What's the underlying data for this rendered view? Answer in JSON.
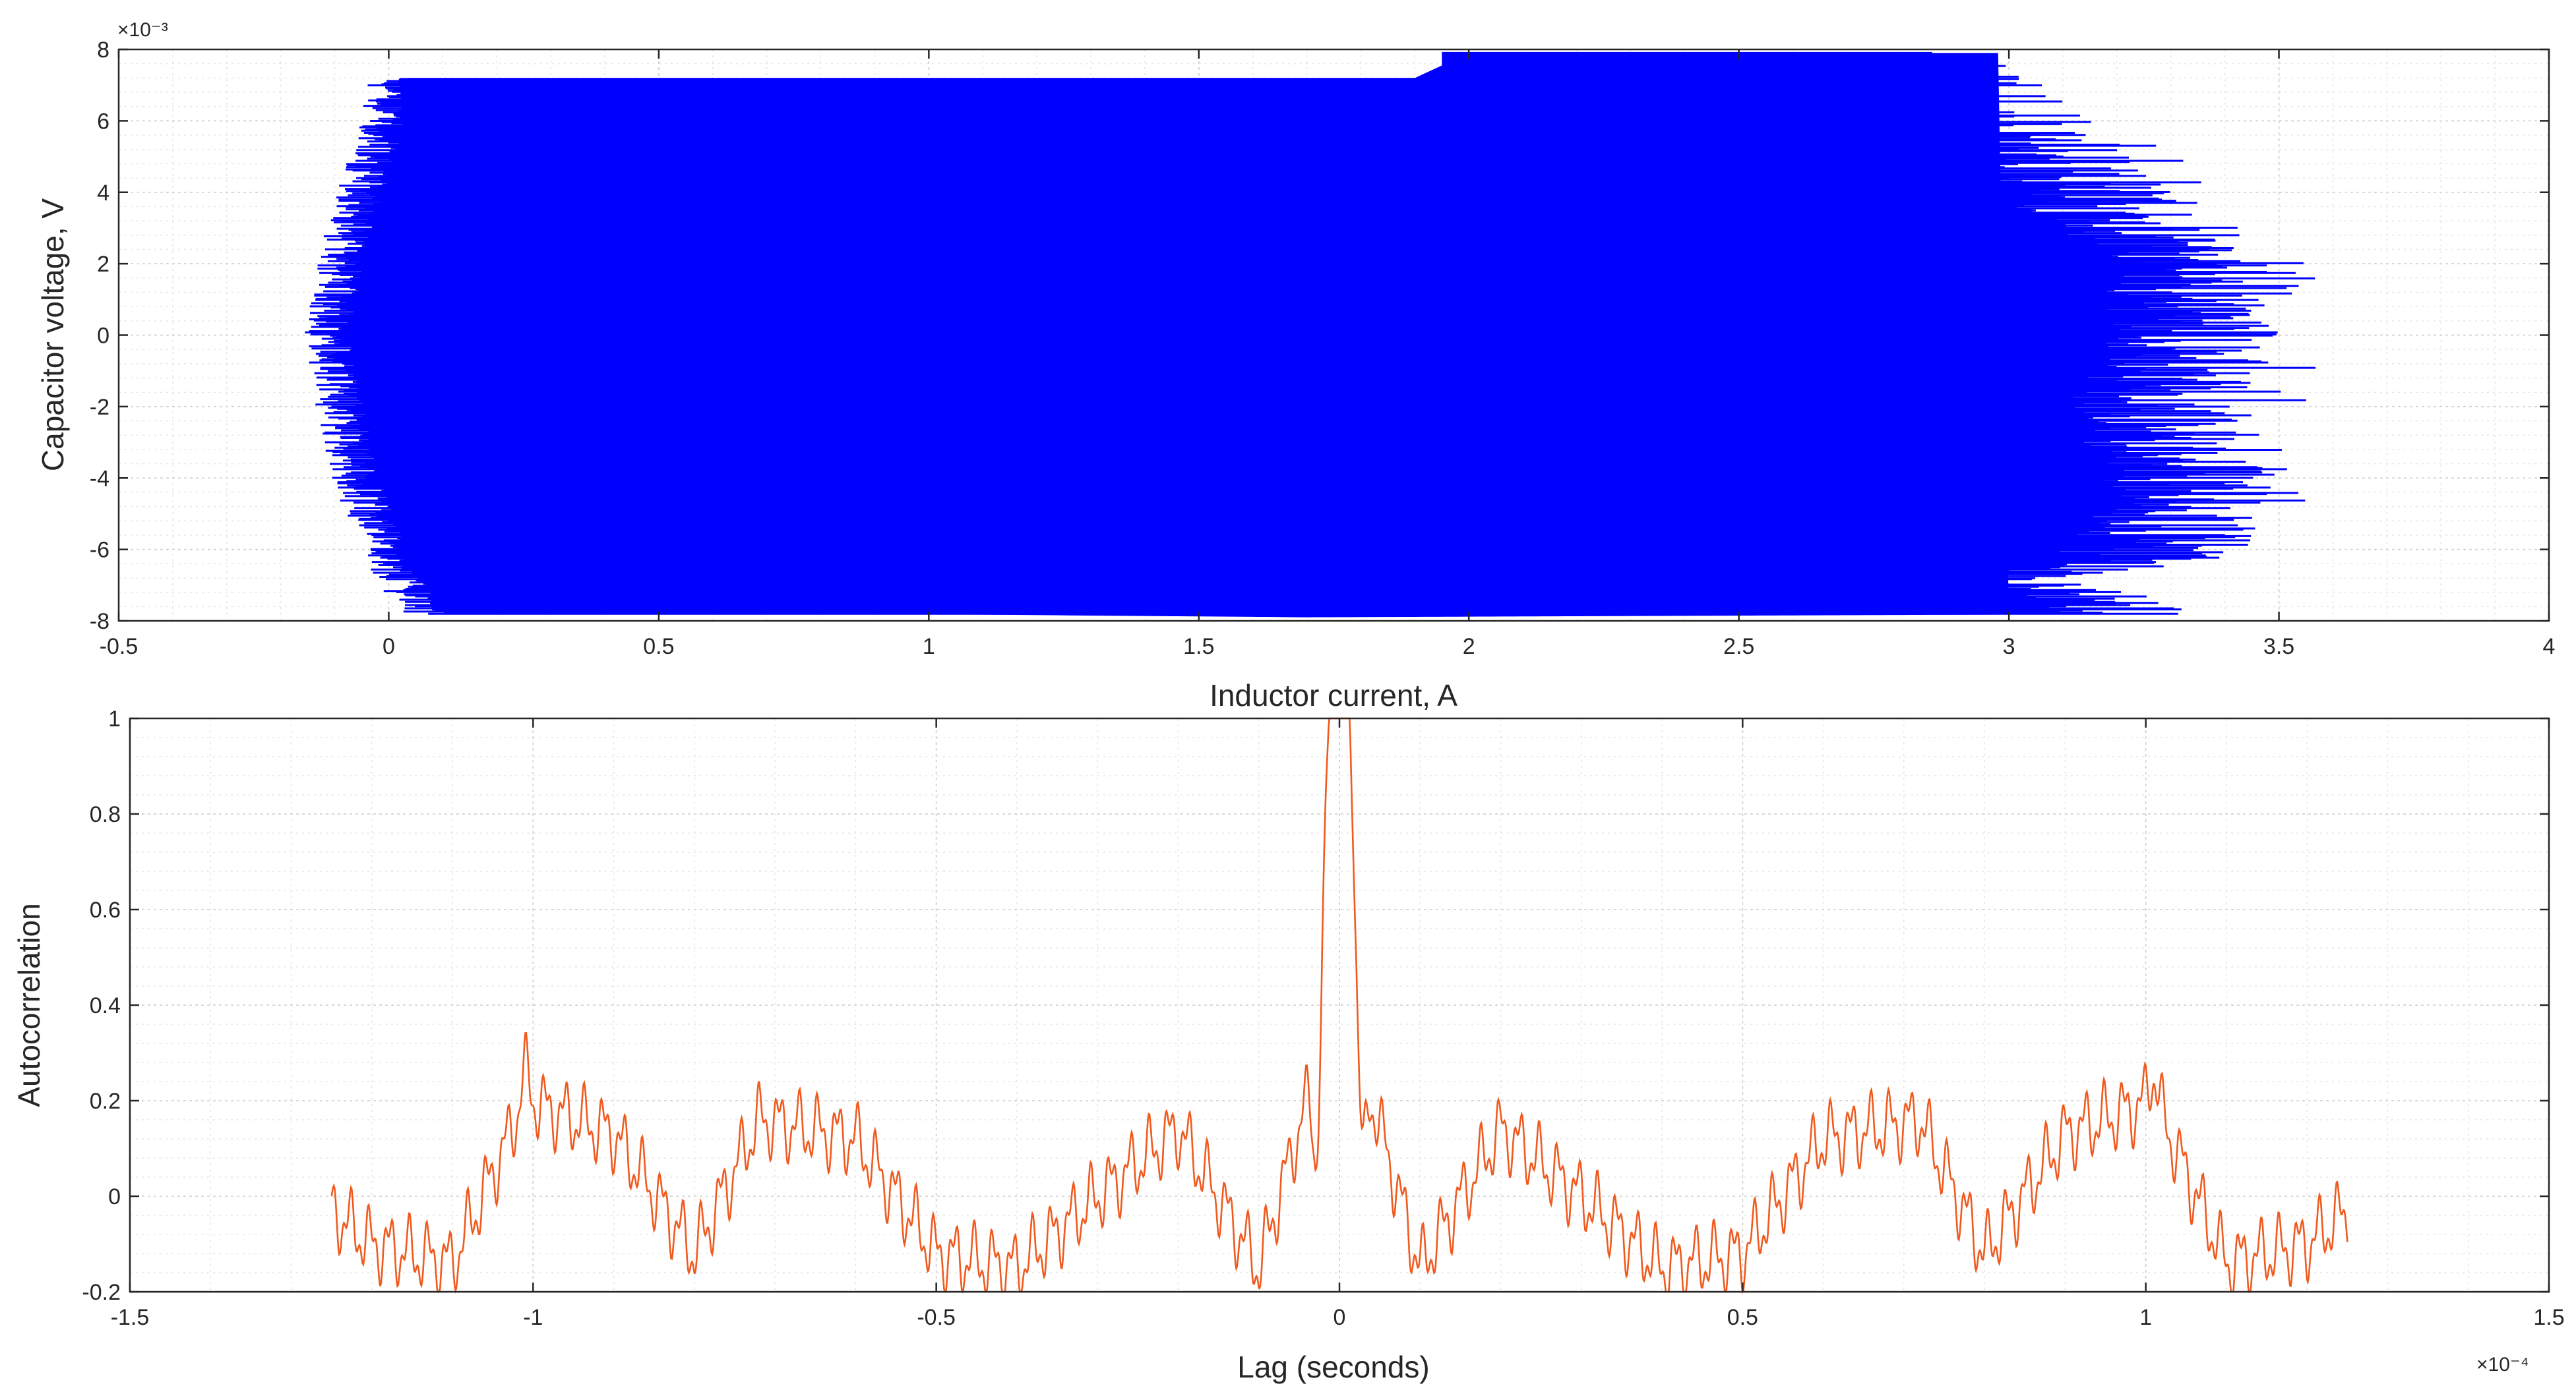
{
  "chart_data": [
    {
      "type": "line",
      "xlabel": "Inductor current, A",
      "ylabel": "Capacitor voltage, V",
      "xlim": [
        -0.5,
        4
      ],
      "ylim": [
        -0.008,
        0.008
      ],
      "x_ticks": [
        -0.5,
        0,
        0.5,
        1,
        1.5,
        2,
        2.5,
        3,
        3.5,
        4
      ],
      "x_tick_labels": [
        "-0.5",
        "0",
        "0.5",
        "1",
        "1.5",
        "2",
        "2.5",
        "3",
        "3.5",
        "4"
      ],
      "y_ticks": [
        -0.008,
        -0.006,
        -0.004,
        -0.002,
        0,
        0.002,
        0.004,
        0.006,
        0.008
      ],
      "y_tick_labels": [
        "-8",
        "-6",
        "-4",
        "-2",
        "0",
        "2",
        "4",
        "6",
        "8"
      ],
      "y_exponent_label": "×10⁻³",
      "grid": true,
      "series": [
        {
          "color": "#0000ff",
          "description_values": {
            "band_left_current_by_voltage": [
              [
                -0.0078,
                0.05
              ],
              [
                -0.007,
                0.02
              ],
              [
                -0.006,
                -0.02
              ],
              [
                -0.004,
                -0.07
              ],
              [
                -0.002,
                -0.1
              ],
              [
                0,
                -0.12
              ],
              [
                0.002,
                -0.1
              ],
              [
                0.004,
                -0.06
              ],
              [
                0.006,
                -0.02
              ],
              [
                0.0072,
                0.0
              ]
            ],
            "band_right_current_by_voltage": [
              [
                -0.0078,
                3.42
              ],
              [
                -0.007,
                3.2
              ],
              [
                -0.006,
                3.45
              ],
              [
                -0.004,
                3.5
              ],
              [
                -0.002,
                3.45
              ],
              [
                0,
                3.5
              ],
              [
                0.002,
                3.55
              ],
              [
                0.004,
                3.3
              ],
              [
                0.006,
                3.15
              ],
              [
                0.0072,
                3.05
              ],
              [
                0.0079,
                2.95
              ]
            ],
            "band_top_voltage_by_current": [
              [
                0.0,
                0.0072
              ],
              [
                1.9,
                0.0072
              ],
              [
                2.0,
                0.0079
              ],
              [
                3.0,
                0.0079
              ]
            ],
            "band_bottom_voltage_by_current": [
              [
                0.05,
                -0.0077
              ],
              [
                1.7,
                -0.0079
              ],
              [
                3.4,
                -0.0078
              ]
            ]
          }
        }
      ]
    },
    {
      "type": "line",
      "xlabel": "Lag (seconds)",
      "ylabel": "Autocorrelation",
      "xlim": [
        -1.5,
        1.5
      ],
      "ylim": [
        -0.2,
        1
      ],
      "x_ticks": [
        -1.5,
        -1,
        -0.5,
        0,
        0.5,
        1,
        1.5
      ],
      "x_tick_labels": [
        "-1.5",
        "-1",
        "-0.5",
        "0",
        "0.5",
        "1",
        "1.5"
      ],
      "x_exponent_label": "×10⁻⁴",
      "y_ticks": [
        -0.2,
        0,
        0.2,
        0.4,
        0.6,
        0.8,
        1
      ],
      "y_tick_labels": [
        "-0.2",
        "0",
        "0.2",
        "0.4",
        "0.6",
        "0.8",
        "1"
      ],
      "grid": true,
      "series": [
        {
          "color": "#f05a1e",
          "x_range": [
            -1.25,
            1.25
          ],
          "peak": {
            "x": 0,
            "y": 1
          },
          "side_peaks": [
            {
              "x": -0.015,
              "y": 0.26
            },
            {
              "x": 0.015,
              "y": 0.26
            }
          ],
          "secondary_peaks": [
            {
              "x": -1.01,
              "y": 0.2
            },
            {
              "x": 1.01,
              "y": 0.2
            }
          ],
          "envelope_points": [
            [
              -1.25,
              -0.03
            ],
            [
              -1.2,
              -0.1
            ],
            [
              -1.1,
              -0.14
            ],
            [
              -1.01,
              0.2
            ],
            [
              -0.9,
              0.13
            ],
            [
              -0.8,
              -0.12
            ],
            [
              -0.72,
              0.16
            ],
            [
              -0.6,
              0.12
            ],
            [
              -0.5,
              -0.12
            ],
            [
              -0.4,
              -0.15
            ],
            [
              -0.3,
              0.0
            ],
            [
              -0.2,
              0.14
            ],
            [
              -0.1,
              -0.15
            ],
            [
              -0.03,
              0.26
            ],
            [
              0,
              1
            ],
            [
              0.03,
              0.26
            ],
            [
              0.1,
              -0.15
            ],
            [
              0.2,
              0.14
            ],
            [
              0.3,
              0.0
            ],
            [
              0.4,
              -0.15
            ],
            [
              0.5,
              -0.12
            ],
            [
              0.6,
              0.12
            ],
            [
              0.72,
              0.16
            ],
            [
              0.8,
              -0.12
            ],
            [
              0.9,
              0.13
            ],
            [
              1.01,
              0.2
            ],
            [
              1.1,
              -0.14
            ],
            [
              1.2,
              -0.1
            ],
            [
              1.25,
              -0.03
            ]
          ]
        }
      ]
    }
  ]
}
